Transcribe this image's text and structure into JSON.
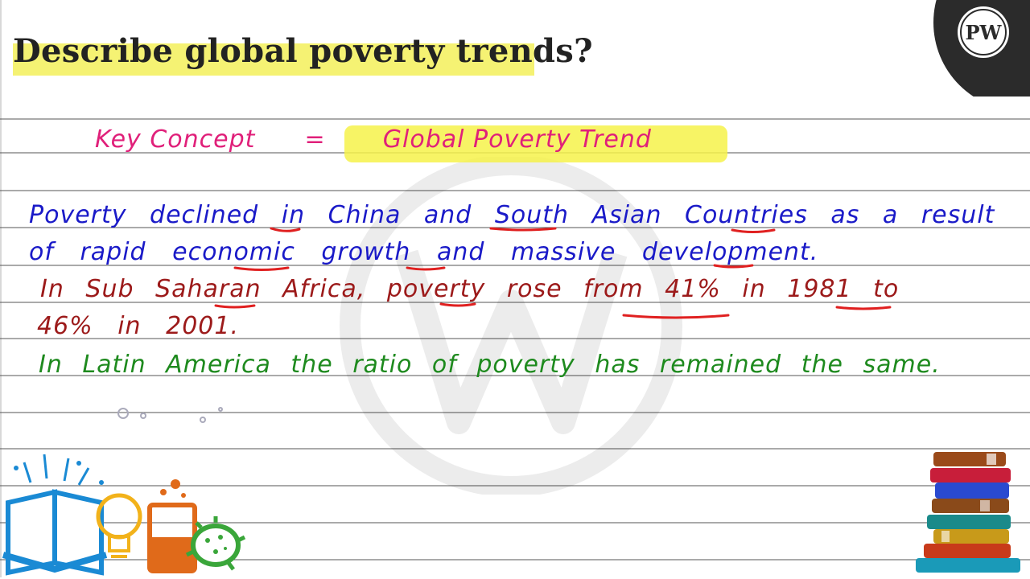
{
  "question": "Describe global poverty trends?",
  "key_concept": {
    "label": "Key Concept",
    "equals": "=",
    "value": "Global Poverty Trend"
  },
  "notes": {
    "line1": "Poverty declined in China and South Asian Countries as a result",
    "line2": "of rapid economic growth and massive development.",
    "line3": "In Sub Saharan Africa, poverty rose from 41% in 1981 to",
    "line4": "46% in 2001.",
    "line5": "In Latin America the ratio of poverty has remained the same."
  },
  "colors": {
    "highlight": "#f3f05a",
    "pink_ink": "#e0207a",
    "blue_ink": "#1a1ac8",
    "maroon_ink": "#9c1a1a",
    "green_ink": "#1e8a1e",
    "underline_red": "#e02020",
    "logo_bg": "#2b2b2b"
  },
  "logo": {
    "text": "PW",
    "icon": "pw-logo-icon"
  },
  "decorations": [
    "open-book-icon",
    "light-bulb-icon",
    "beaker-icon",
    "virus-icon",
    "stacked-books-icon",
    "watermark-logo-icon"
  ]
}
